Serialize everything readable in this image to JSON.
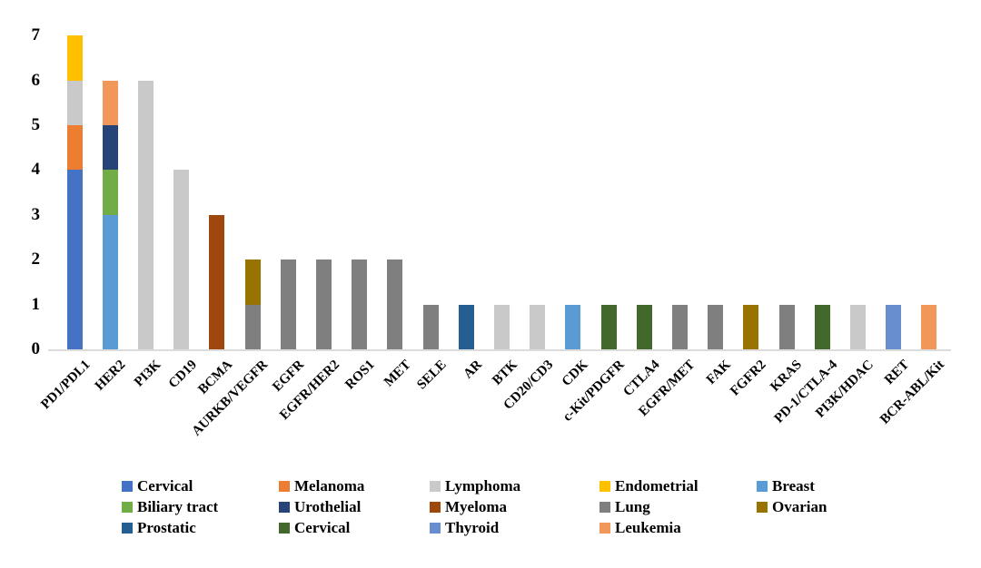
{
  "chart_data": {
    "type": "bar",
    "stacked": true,
    "title": "",
    "xlabel": "",
    "ylabel": "",
    "ylim": [
      0,
      7
    ],
    "yticks": [
      "0",
      "1",
      "2",
      "3",
      "4",
      "5",
      "6",
      "7"
    ],
    "grid": false,
    "legend_position": "bottom",
    "background_color": "#ffffff",
    "axis_line_color": "#dcdcdc",
    "series_legend": [
      {
        "id": "cervical",
        "label": "Cervical",
        "color": "#4472C4"
      },
      {
        "id": "melanoma",
        "label": "Melanoma",
        "color": "#ED7D31"
      },
      {
        "id": "lymphoma",
        "label": "Lymphoma",
        "color": "#C9C9C9"
      },
      {
        "id": "endometrial",
        "label": "Endometrial",
        "color": "#FFC000"
      },
      {
        "id": "breast",
        "label": "Breast",
        "color": "#5B9BD5"
      },
      {
        "id": "biliary_tract",
        "label": "Biliary tract",
        "color": "#70AD47"
      },
      {
        "id": "urothelial",
        "label": "Urothelial",
        "color": "#264478"
      },
      {
        "id": "myeloma",
        "label": "Myeloma",
        "color": "#9E480E"
      },
      {
        "id": "lung",
        "label": "Lung",
        "color": "#7F7F7F"
      },
      {
        "id": "ovarian",
        "label": "Ovarian",
        "color": "#997300"
      },
      {
        "id": "prostatic",
        "label": "Prostatic",
        "color": "#255E91"
      },
      {
        "id": "cervical_2",
        "label": "Cervical",
        "color": "#43682B"
      },
      {
        "id": "thyroid",
        "label": "Thyroid",
        "color": "#698ED0"
      },
      {
        "id": "leukemia",
        "label": "Leukemia",
        "color": "#F1975A"
      }
    ],
    "bars": [
      {
        "category": "PD1/PDL1",
        "total": 7,
        "segments": [
          {
            "series": "cervical",
            "value": 4
          },
          {
            "series": "melanoma",
            "value": 1
          },
          {
            "series": "lymphoma",
            "value": 1
          },
          {
            "series": "endometrial",
            "value": 1
          }
        ]
      },
      {
        "category": "HER2",
        "total": 6,
        "segments": [
          {
            "series": "breast",
            "value": 3
          },
          {
            "series": "biliary_tract",
            "value": 1
          },
          {
            "series": "urothelial",
            "value": 1
          },
          {
            "series": "leukemia",
            "value": 1
          }
        ]
      },
      {
        "category": "PI3K",
        "total": 6,
        "segments": [
          {
            "series": "lymphoma",
            "value": 6
          }
        ]
      },
      {
        "category": "CD19",
        "total": 4,
        "segments": [
          {
            "series": "lymphoma",
            "value": 4
          }
        ]
      },
      {
        "category": "BCMA",
        "total": 3,
        "segments": [
          {
            "series": "myeloma",
            "value": 3
          }
        ]
      },
      {
        "category": "AURKB/VEGFR",
        "total": 2,
        "segments": [
          {
            "series": "lung",
            "value": 1
          },
          {
            "series": "ovarian",
            "value": 1
          }
        ]
      },
      {
        "category": "EGFR",
        "total": 2,
        "segments": [
          {
            "series": "lung",
            "value": 2
          }
        ]
      },
      {
        "category": "EGFR/HER2",
        "total": 2,
        "segments": [
          {
            "series": "lung",
            "value": 2
          }
        ]
      },
      {
        "category": "ROS1",
        "total": 2,
        "segments": [
          {
            "series": "lung",
            "value": 2
          }
        ]
      },
      {
        "category": "MET",
        "total": 2,
        "segments": [
          {
            "series": "lung",
            "value": 2
          }
        ]
      },
      {
        "category": "SELE",
        "total": 1,
        "segments": [
          {
            "series": "lung",
            "value": 1
          }
        ]
      },
      {
        "category": "AR",
        "total": 1,
        "segments": [
          {
            "series": "prostatic",
            "value": 1
          }
        ]
      },
      {
        "category": "BTK",
        "total": 1,
        "segments": [
          {
            "series": "lymphoma",
            "value": 1
          }
        ]
      },
      {
        "category": "CD20/CD3",
        "total": 1,
        "segments": [
          {
            "series": "lymphoma",
            "value": 1
          }
        ]
      },
      {
        "category": "CDK",
        "total": 1,
        "segments": [
          {
            "series": "breast",
            "value": 1
          }
        ]
      },
      {
        "category": "c-Kit/PDGFR",
        "total": 1,
        "segments": [
          {
            "series": "cervical_2",
            "value": 1
          }
        ]
      },
      {
        "category": "CTLA4",
        "total": 1,
        "segments": [
          {
            "series": "cervical_2",
            "value": 1
          }
        ]
      },
      {
        "category": "EGFR/MET",
        "total": 1,
        "segments": [
          {
            "series": "lung",
            "value": 1
          }
        ]
      },
      {
        "category": "FAK",
        "total": 1,
        "segments": [
          {
            "series": "lung",
            "value": 1
          }
        ]
      },
      {
        "category": "FGFR2",
        "total": 1,
        "segments": [
          {
            "series": "ovarian",
            "value": 1
          }
        ]
      },
      {
        "category": "KRAS",
        "total": 1,
        "segments": [
          {
            "series": "lung",
            "value": 1
          }
        ]
      },
      {
        "category": "PD-1/CTLA-4",
        "total": 1,
        "segments": [
          {
            "series": "cervical_2",
            "value": 1
          }
        ]
      },
      {
        "category": "PI3K/HDAC",
        "total": 1,
        "segments": [
          {
            "series": "lymphoma",
            "value": 1
          }
        ]
      },
      {
        "category": "RET",
        "total": 1,
        "segments": [
          {
            "series": "thyroid",
            "value": 1
          }
        ]
      },
      {
        "category": "BCR-ABL/Kit",
        "total": 1,
        "segments": [
          {
            "series": "leukemia",
            "value": 1
          }
        ]
      }
    ]
  }
}
